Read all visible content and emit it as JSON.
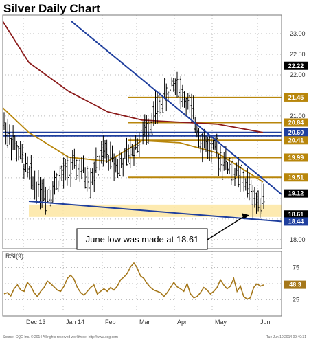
{
  "chart_data": [
    {
      "type": "ohlc",
      "title": "Silver Daily Chart",
      "x_labels": [
        "Dec 13",
        "Jan 14",
        "Feb",
        "Mar",
        "Apr",
        "May",
        "Jun"
      ],
      "y_ticks": [
        18.0,
        18.5,
        19.0,
        19.5,
        20.0,
        20.5,
        21.0,
        21.5,
        22.0,
        22.5,
        23.0
      ],
      "ylim": [
        17.78,
        23.45
      ],
      "grid": true,
      "price_tags": [
        {
          "label": "22.22",
          "value": 22.22,
          "color": "#000000"
        },
        {
          "label": "21.45",
          "value": 21.45,
          "color": "#b8860b"
        },
        {
          "label": "20.84",
          "value": 20.84,
          "color": "#b8860b"
        },
        {
          "label": "20.60",
          "value": 20.6,
          "color": "#1f3f9e"
        },
        {
          "label": "20.41",
          "value": 20.41,
          "color": "#b8860b"
        },
        {
          "label": "19.99",
          "value": 19.99,
          "color": "#b8860b"
        },
        {
          "label": "19.51",
          "value": 19.51,
          "color": "#b8860b"
        },
        {
          "label": "19.12",
          "value": 19.12,
          "color": "#000000"
        },
        {
          "label": "18.61",
          "value": 18.61,
          "color": "#000000"
        },
        {
          "label": "18.44",
          "value": 18.44,
          "color": "#1f3f9e"
        }
      ],
      "fib_lines": [
        21.45,
        20.84,
        20.41,
        19.99,
        19.51
      ],
      "fib_start_date": "Feb",
      "horizontal_lines": [
        20.6,
        20.52
      ],
      "support_zone": [
        18.55,
        18.85
      ],
      "trend_lines": [
        {
          "from": [
            "Nov",
            23.3
          ],
          "to": [
            "Jun",
            19.1
          ]
        },
        {
          "from": [
            "Dec",
            18.93
          ],
          "to": [
            "Jun",
            18.44
          ]
        }
      ],
      "annotation": "June low was made at 18.61",
      "moving_averages": [
        {
          "color": "#8b1a1a",
          "points": [
            [
              "Nov",
              23.3
            ],
            [
              "Dec 13",
              22.3
            ],
            [
              "Jan 14",
              21.6
            ],
            [
              "Feb",
              21.1
            ],
            [
              "Mar",
              20.9
            ],
            [
              "Apr",
              20.85
            ],
            [
              "May",
              20.8
            ],
            [
              "Jun",
              20.6
            ]
          ]
        },
        {
          "color": "#b8860b",
          "points": [
            [
              "Nov",
              21.2
            ],
            [
              "Dec 13",
              20.6
            ],
            [
              "Jan 14",
              20.0
            ],
            [
              "Feb",
              19.9
            ],
            [
              "Mar",
              20.4
            ],
            [
              "Apr",
              20.35
            ],
            [
              "May",
              20.1
            ],
            [
              "Jun",
              19.4
            ]
          ]
        }
      ],
      "candle_count": 145,
      "price_path": [
        [
          0,
          20.8
        ],
        [
          8,
          20.1
        ],
        [
          16,
          19.4
        ],
        [
          24,
          19.1
        ],
        [
          32,
          19.55
        ],
        [
          40,
          19.75
        ],
        [
          48,
          19.5
        ],
        [
          56,
          20.1
        ],
        [
          64,
          19.8
        ],
        [
          72,
          20.2
        ],
        [
          80,
          20.8
        ],
        [
          88,
          21.4
        ],
        [
          95,
          21.8
        ],
        [
          102,
          21.3
        ],
        [
          110,
          20.4
        ],
        [
          118,
          20.1
        ],
        [
          126,
          19.7
        ],
        [
          134,
          19.4
        ],
        [
          140,
          18.9
        ],
        [
          144,
          19.1
        ]
      ]
    },
    {
      "type": "line",
      "title": "RSI(9)",
      "y_ticks": [
        25,
        50,
        75
      ],
      "ylim": [
        0,
        100
      ],
      "last_value_label": "48.3",
      "series": [
        {
          "color": "#a5771a",
          "values": [
            34,
            36,
            31,
            42,
            48,
            40,
            38,
            52,
            46,
            36,
            30,
            38,
            44,
            54,
            50,
            45,
            40,
            38,
            46,
            58,
            63,
            57,
            44,
            36,
            32,
            38,
            44,
            48,
            34,
            38,
            42,
            38,
            44,
            40,
            46,
            56,
            60,
            66,
            76,
            82,
            74,
            62,
            58,
            50,
            44,
            40,
            38,
            36,
            30,
            36,
            44,
            52,
            45,
            42,
            38,
            50,
            34,
            28,
            30,
            36,
            44,
            40,
            34,
            38,
            44,
            56,
            48,
            42,
            46,
            58,
            38,
            46,
            30,
            26,
            28,
            44,
            50,
            46,
            48
          ]
        }
      ]
    }
  ],
  "footer": {
    "left": "Source: CQG Inc. © 2014 All rights reserved worldwide. http://www.cqg.com",
    "right": "Tue Jun 10 2014 09:40:31"
  }
}
